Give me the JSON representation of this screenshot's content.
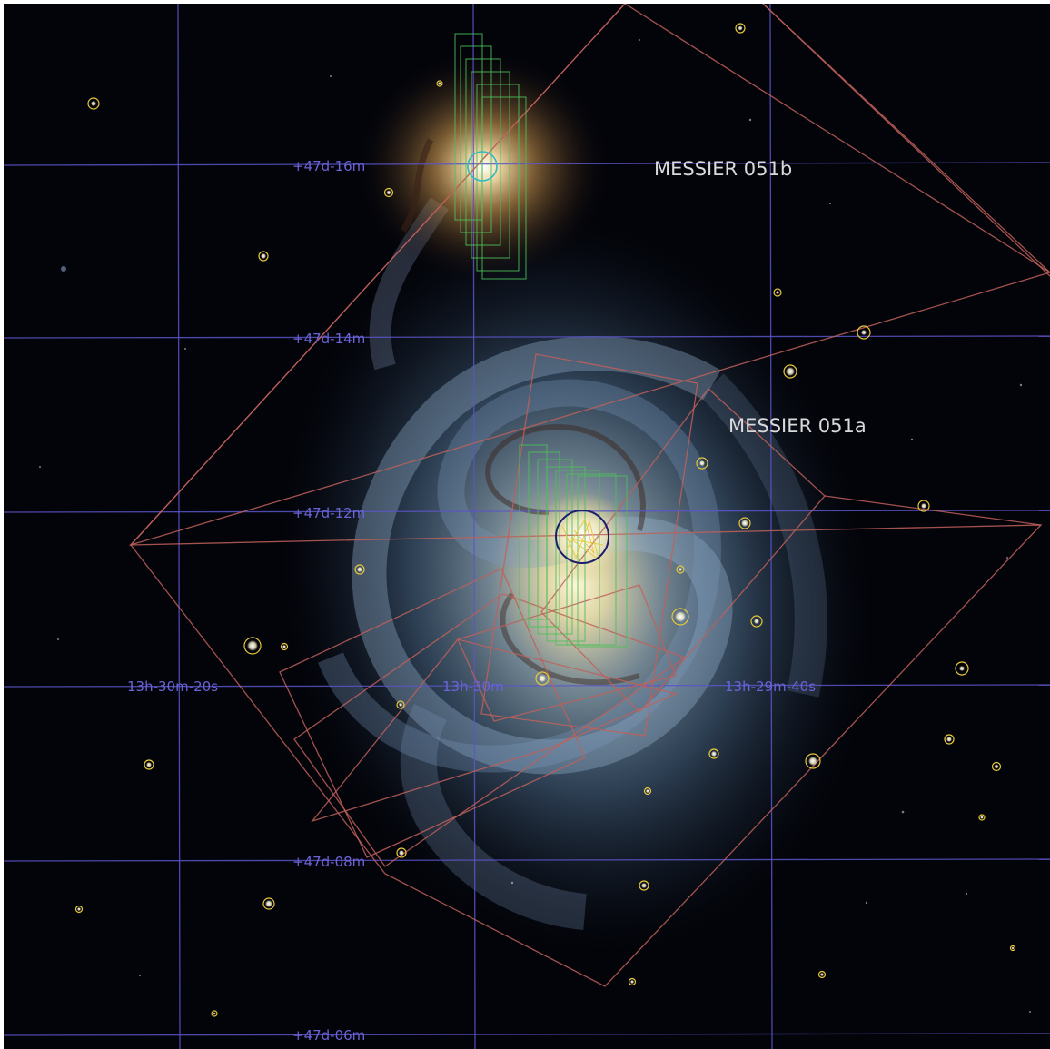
{
  "image": {
    "subject": "M51 Whirlpool Galaxy sky field with coordinate grid and instrument footprints",
    "colors": {
      "background": "#03040a",
      "grid": "#5a55c8",
      "grid_label": "#6b63d6",
      "object_label": "#d9d9d9",
      "footprint_large": "#c0605a",
      "footprint_small": "#4cbf5a",
      "source_marker": "#e8c83a",
      "nucleus_circle_a": "#1a1e6e",
      "nucleus_circle_b": "#30b8c8"
    }
  },
  "grid": {
    "dec_labels": [
      "+47d-16m",
      "+47d-14m",
      "+47d-12m",
      "+47d-08m",
      "+47d-06m"
    ],
    "ra_labels": [
      "13h-30m-20s",
      "13h-30m",
      "13h-29m-40s"
    ]
  },
  "objects": {
    "m51b_label": "MESSIER 051b",
    "m51a_label": "MESSIER 051a"
  }
}
